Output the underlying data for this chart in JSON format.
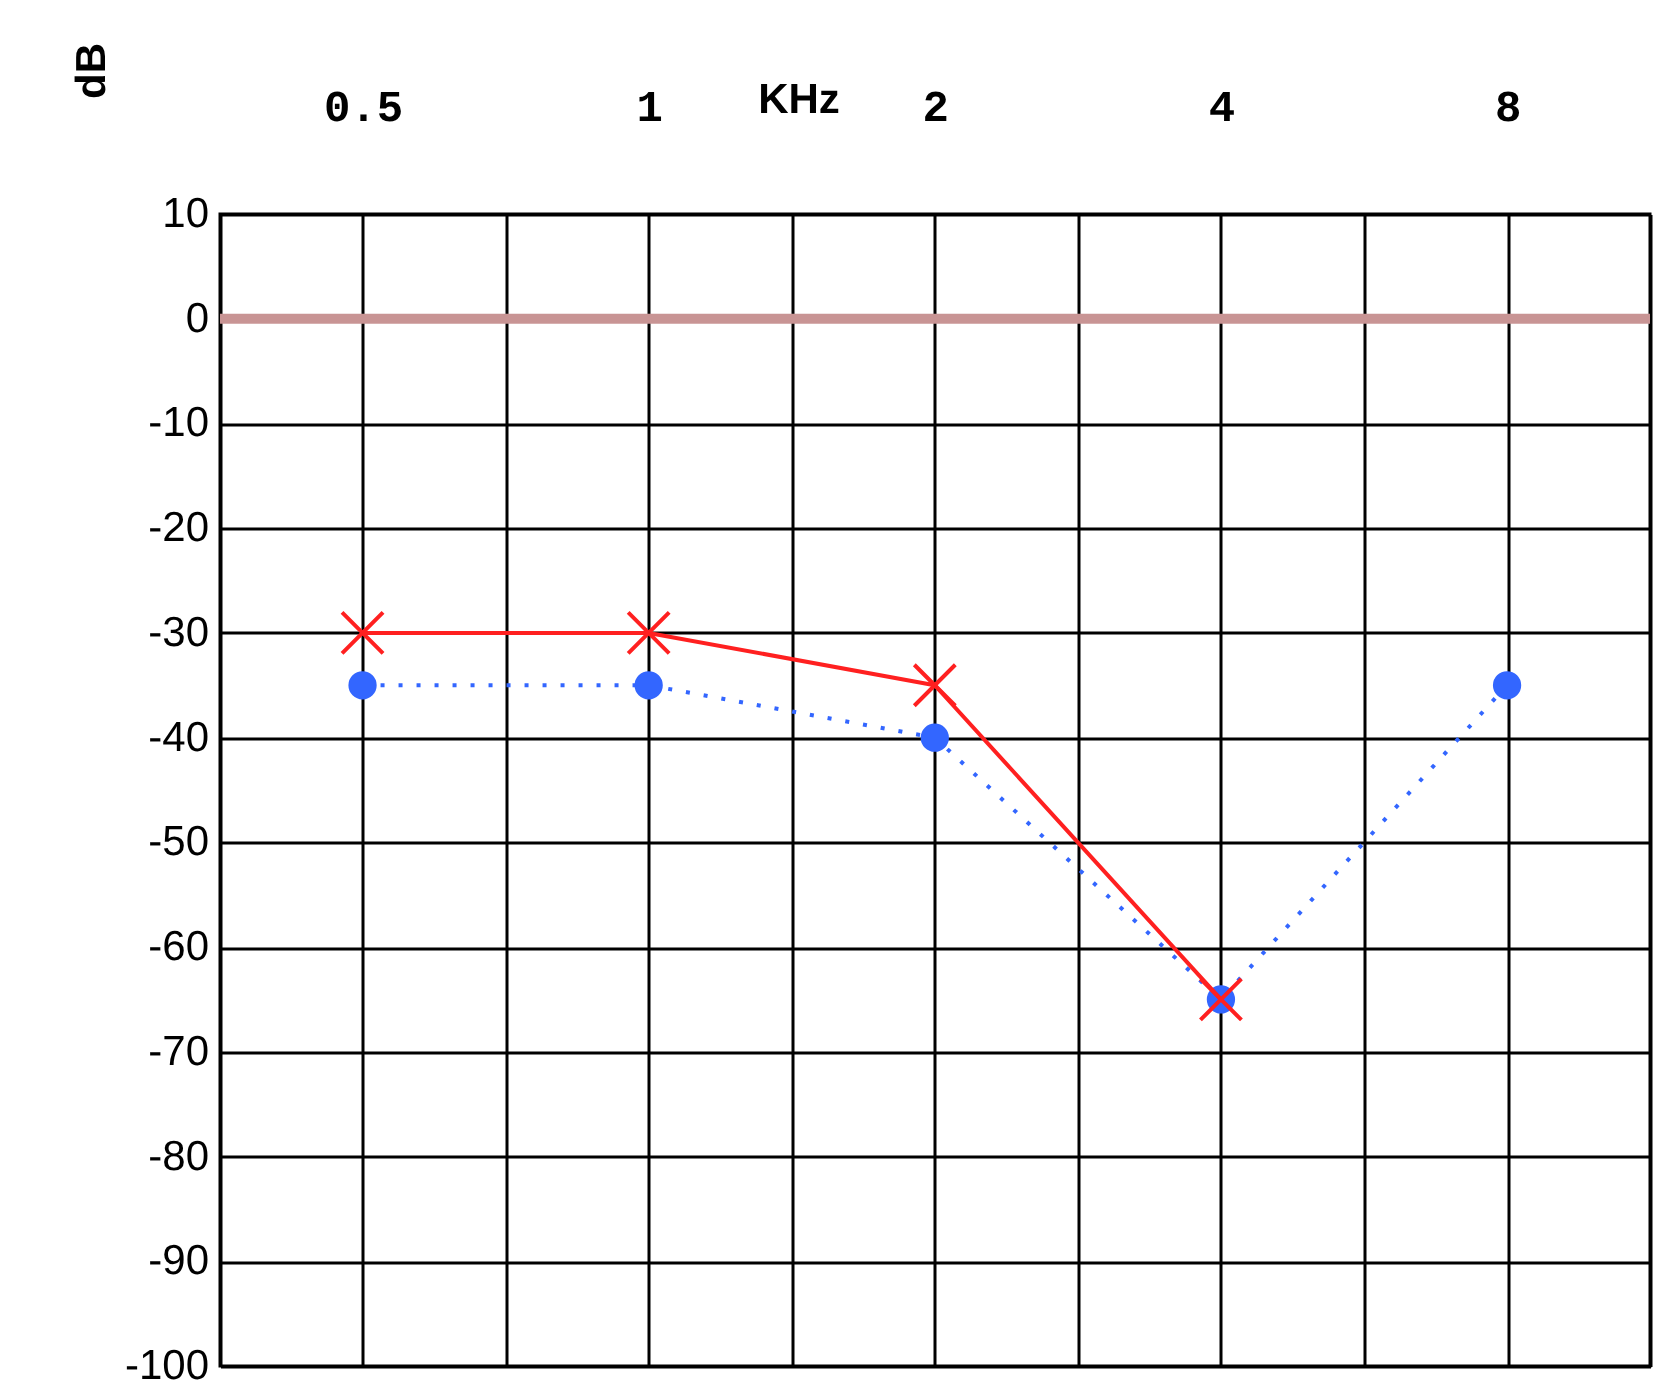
{
  "chart_data": {
    "type": "line",
    "xlabel": "KHz",
    "ylabel": "dB",
    "log": "x",
    "xlim": [
      0.354,
      11.31
    ],
    "xticks": [
      {
        "value": 0.354,
        "label": null
      },
      0.5,
      {
        "value": 0.707,
        "label": null
      },
      1,
      {
        "value": 1.414,
        "label": null
      },
      2,
      {
        "value": 2.83,
        "label": null
      },
      4,
      {
        "value": 5.66,
        "label": null
      },
      8,
      {
        "value": 11.31,
        "label": null
      }
    ],
    "ylim": [
      -100,
      10
    ],
    "yticks": [
      -100,
      -90,
      -80,
      -70,
      -60,
      -50,
      -40,
      -30,
      -20,
      -10,
      0,
      10
    ],
    "grid": true,
    "ref_lines": [
      {
        "axis": "y",
        "value": 0,
        "color": "#c89494"
      }
    ],
    "series": [
      {
        "color": "#3366ff",
        "marker": "circle",
        "line_style": "dotted",
        "x": [
          0.5,
          1,
          2,
          4,
          8
        ],
        "values": [
          -35,
          -35,
          -40,
          -65,
          -35
        ]
      },
      {
        "color": "#ff2020",
        "marker": "cross",
        "line_style": "solid",
        "x": [
          0.5,
          1,
          2,
          4
        ],
        "values": [
          -30,
          -30,
          -35,
          -65
        ]
      }
    ]
  }
}
